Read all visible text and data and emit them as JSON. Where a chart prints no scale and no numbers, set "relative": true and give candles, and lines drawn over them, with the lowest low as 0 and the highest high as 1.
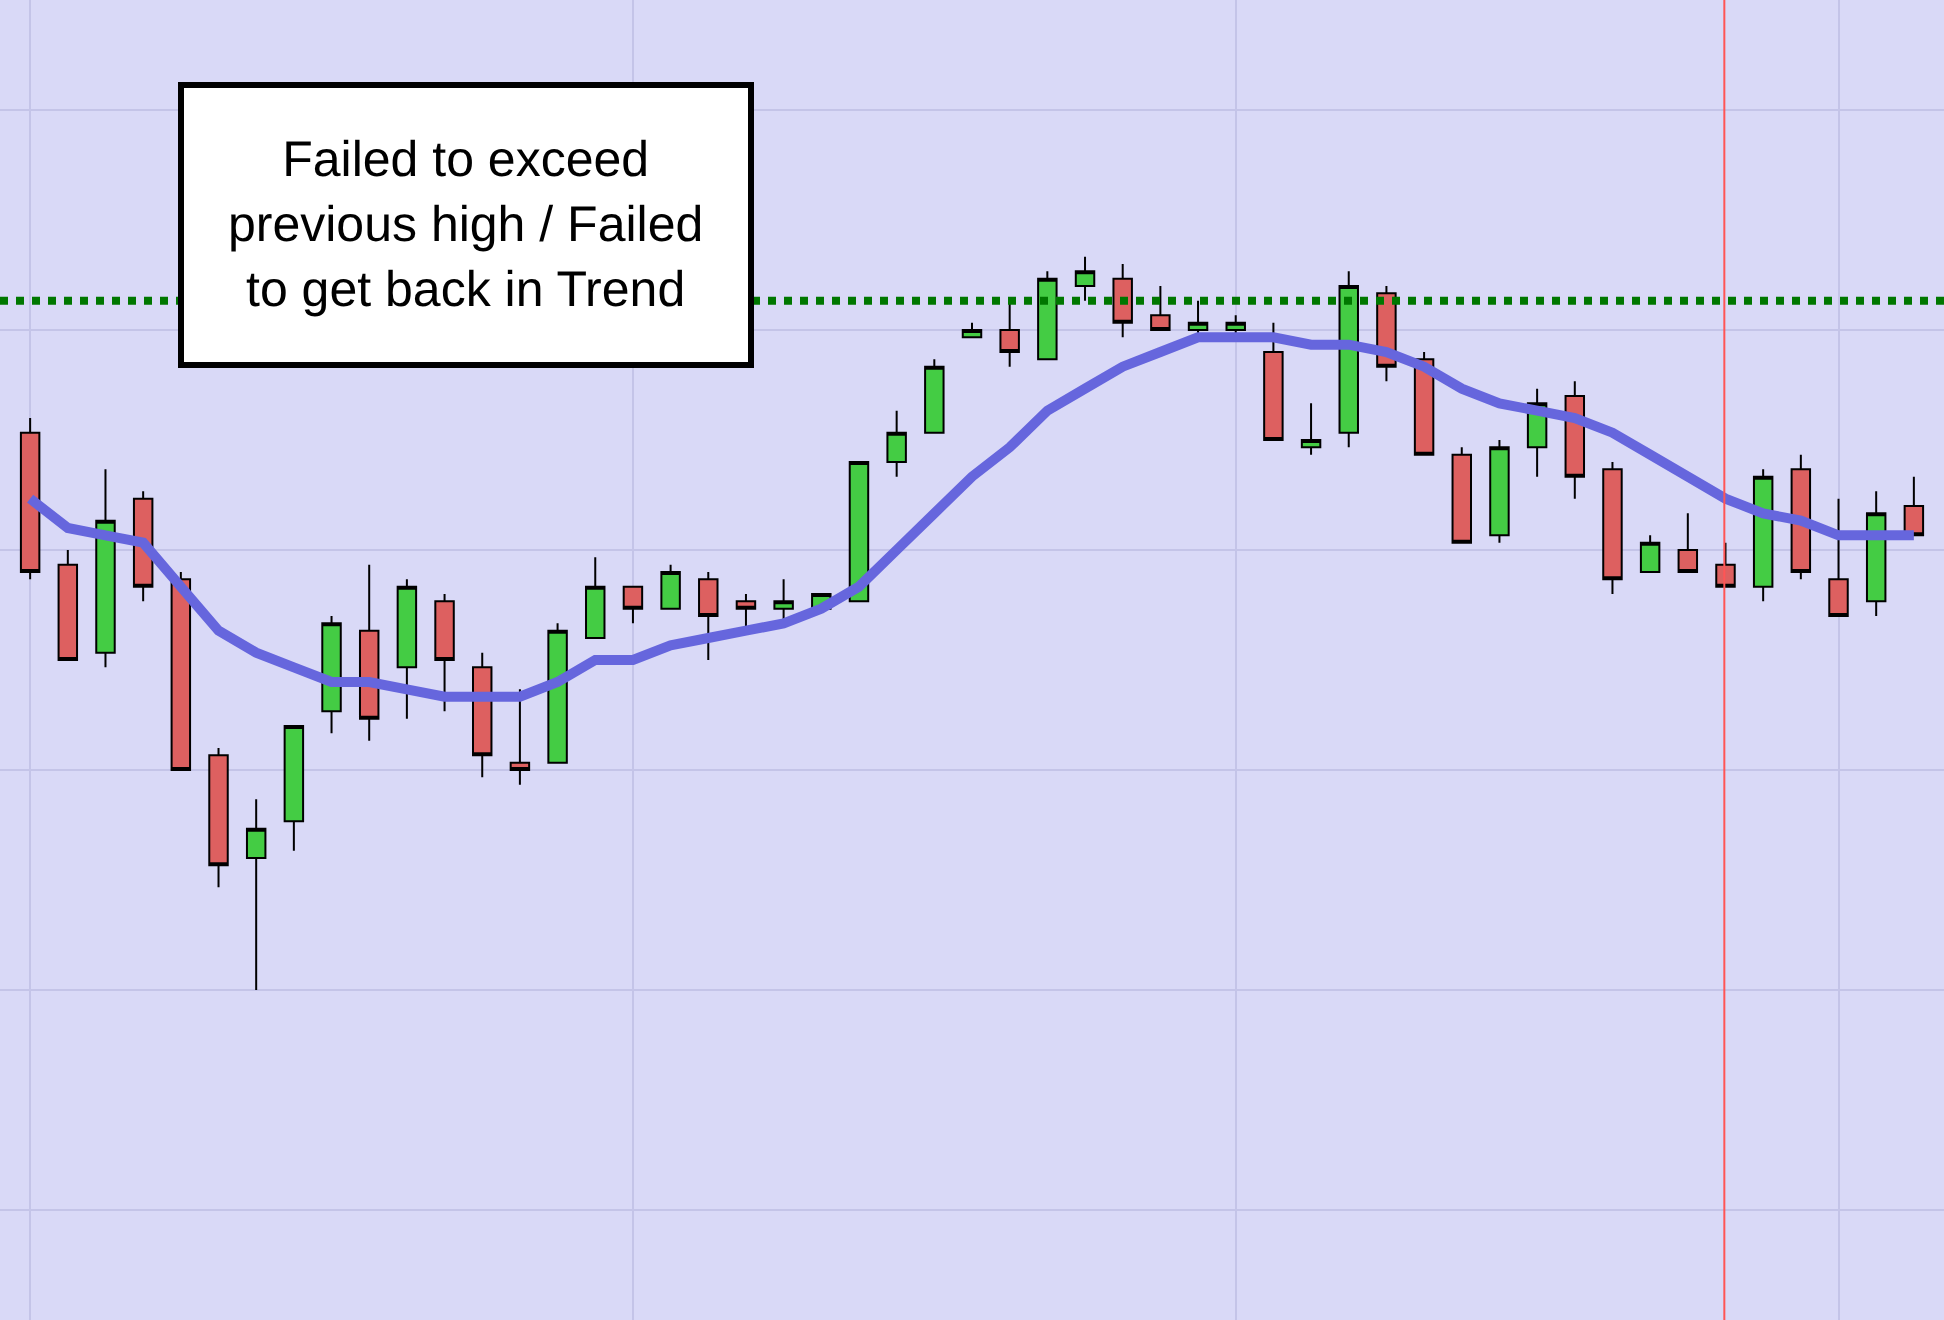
{
  "chart_data": {
    "type": "candlestick",
    "relative": true,
    "categories": [
      null,
      null,
      null,
      null,
      null,
      null,
      null,
      null,
      null,
      null,
      null,
      null,
      null,
      null,
      null,
      null,
      null,
      null,
      null,
      null,
      null,
      null,
      null,
      null,
      null,
      null,
      null,
      null,
      null,
      null,
      null,
      null,
      null,
      null,
      null,
      null,
      null,
      null,
      null,
      null,
      null,
      null,
      null,
      null,
      null,
      null,
      null,
      null,
      null,
      null,
      null
    ],
    "ohlc": [
      [
        0.76,
        0.78,
        0.56,
        0.57
      ],
      [
        0.58,
        0.6,
        0.45,
        0.45
      ],
      [
        0.46,
        0.71,
        0.44,
        0.64
      ],
      [
        0.67,
        0.68,
        0.53,
        0.55
      ],
      [
        0.56,
        0.57,
        0.3,
        0.3
      ],
      [
        0.32,
        0.33,
        0.14,
        0.17
      ],
      [
        0.18,
        0.26,
        0.0,
        0.22
      ],
      [
        0.23,
        0.36,
        0.19,
        0.36
      ],
      [
        0.38,
        0.51,
        0.35,
        0.5
      ],
      [
        0.49,
        0.58,
        0.34,
        0.37
      ],
      [
        0.44,
        0.56,
        0.37,
        0.55
      ],
      [
        0.53,
        0.54,
        0.38,
        0.45
      ],
      [
        0.44,
        0.46,
        0.29,
        0.32
      ],
      [
        0.31,
        0.41,
        0.28,
        0.3
      ],
      [
        0.31,
        0.5,
        0.31,
        0.49
      ],
      [
        0.48,
        0.59,
        0.48,
        0.55
      ],
      [
        0.55,
        0.55,
        0.5,
        0.52
      ],
      [
        0.52,
        0.58,
        0.52,
        0.57
      ],
      [
        0.56,
        0.57,
        0.45,
        0.51
      ],
      [
        0.53,
        0.54,
        0.49,
        0.52
      ],
      [
        0.52,
        0.56,
        0.5,
        0.53
      ],
      [
        0.52,
        0.54,
        0.52,
        0.54
      ],
      [
        0.53,
        0.72,
        0.53,
        0.72
      ],
      [
        0.72,
        0.79,
        0.7,
        0.76
      ],
      [
        0.76,
        0.86,
        0.76,
        0.85
      ],
      [
        0.89,
        0.91,
        0.89,
        0.9
      ],
      [
        0.9,
        0.94,
        0.85,
        0.87
      ],
      [
        0.86,
        0.98,
        0.86,
        0.97
      ],
      [
        0.96,
        1.0,
        0.94,
        0.98
      ],
      [
        0.97,
        0.99,
        0.89,
        0.91
      ],
      [
        0.92,
        0.96,
        0.9,
        0.9
      ],
      [
        0.9,
        0.94,
        0.89,
        0.91
      ],
      [
        0.9,
        0.92,
        0.89,
        0.91
      ],
      [
        0.87,
        0.91,
        0.75,
        0.75
      ],
      [
        0.74,
        0.8,
        0.73,
        0.75
      ],
      [
        0.76,
        0.98,
        0.74,
        0.96
      ],
      [
        0.95,
        0.96,
        0.83,
        0.85
      ],
      [
        0.86,
        0.87,
        0.73,
        0.73
      ],
      [
        0.73,
        0.74,
        0.61,
        0.61
      ],
      [
        0.62,
        0.75,
        0.61,
        0.74
      ],
      [
        0.74,
        0.82,
        0.7,
        0.8
      ],
      [
        0.81,
        0.83,
        0.67,
        0.7
      ],
      [
        0.71,
        0.72,
        0.54,
        0.56
      ],
      [
        0.57,
        0.62,
        0.57,
        0.61
      ],
      [
        0.6,
        0.65,
        0.57,
        0.57
      ],
      [
        0.58,
        0.61,
        0.55,
        0.55
      ],
      [
        0.55,
        0.71,
        0.53,
        0.7
      ],
      [
        0.71,
        0.73,
        0.56,
        0.57
      ],
      [
        0.56,
        0.67,
        0.51,
        0.51
      ],
      [
        0.53,
        0.68,
        0.51,
        0.65
      ],
      [
        0.66,
        0.7,
        0.62,
        0.62
      ]
    ],
    "colors": [
      "#dd6060",
      "#dd6060",
      "#44cc44",
      "#dd6060",
      "#dd6060",
      "#dd6060",
      "#44cc44",
      "#44cc44",
      "#44cc44",
      "#dd6060",
      "#44cc44",
      "#dd6060",
      "#dd6060",
      "#dd6060",
      "#44cc44",
      "#44cc44",
      "#dd6060",
      "#44cc44",
      "#dd6060",
      "#dd6060",
      "#44cc44",
      "#44cc44",
      "#44cc44",
      "#44cc44",
      "#44cc44",
      "#44cc44",
      "#dd6060",
      "#44cc44",
      "#44cc44",
      "#dd6060",
      "#dd6060",
      "#44cc44",
      "#44cc44",
      "#dd6060",
      "#44cc44",
      "#44cc44",
      "#dd6060",
      "#dd6060",
      "#dd6060",
      "#44cc44",
      "#44cc44",
      "#dd6060",
      "#dd6060",
      "#44cc44",
      "#dd6060",
      "#dd6060",
      "#44cc44",
      "#dd6060",
      "#dd6060",
      "#44cc44",
      "#dd6060"
    ],
    "series": [
      {
        "type": "line",
        "color": "#6666dd",
        "values": [
          0.67,
          0.63,
          0.62,
          0.61,
          0.55,
          0.49,
          0.46,
          0.44,
          0.42,
          0.42,
          0.41,
          0.4,
          0.4,
          0.4,
          0.42,
          0.45,
          0.45,
          0.47,
          0.48,
          0.49,
          0.5,
          0.52,
          0.55,
          0.6,
          0.65,
          0.7,
          0.74,
          0.79,
          0.82,
          0.85,
          0.87,
          0.89,
          0.89,
          0.89,
          0.88,
          0.88,
          0.87,
          0.85,
          0.82,
          0.8,
          0.79,
          0.78,
          0.76,
          0.73,
          0.7,
          0.67,
          0.65,
          0.64,
          0.62,
          0.62,
          0.62
        ]
      }
    ],
    "ref_lines": [
      {
        "axis": "y",
        "value": 0.94,
        "color": "#007700",
        "line_style": "dotted"
      }
    ],
    "annotations": [
      "Failed to exceed\nprevious high / Failed\nto get back in Trend"
    ],
    "grid": true,
    "tick_labels": false
  }
}
